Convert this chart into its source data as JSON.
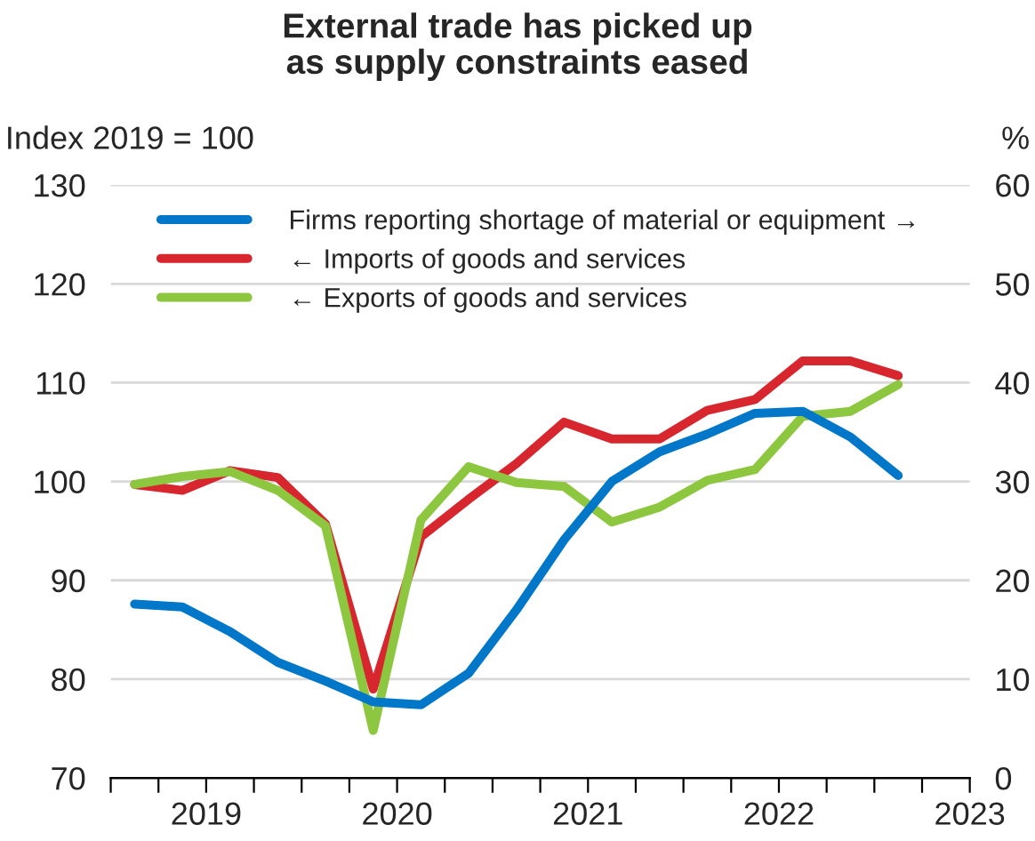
{
  "chart_data": {
    "type": "line",
    "title": "External trade has picked up\nas supply constraints eased",
    "ylabel": "Index 2019 = 100",
    "y2label": "%",
    "x": [
      2018.625,
      2018.875,
      2019.125,
      2019.375,
      2019.625,
      2019.875,
      2020.125,
      2020.375,
      2020.625,
      2020.875,
      2021.125,
      2021.375,
      2021.625,
      2021.875,
      2022.125,
      2022.375,
      2022.625
    ],
    "series": [
      {
        "name": "Firms reporting shortage of material or equipment →",
        "color": "#0077c8",
        "axis": "y2",
        "values": [
          17.6,
          17.3,
          14.8,
          11.7,
          9.8,
          7.7,
          7.4,
          10.6,
          17.0,
          24.1,
          30.0,
          33.0,
          34.8,
          36.9,
          37.1,
          34.5,
          30.6
        ]
      },
      {
        "name": "← Imports of goods and services",
        "color": "#d7262e",
        "values": [
          99.7,
          99.1,
          101.1,
          100.4,
          95.7,
          79.0,
          94.4,
          98.2,
          101.8,
          106.0,
          104.3,
          104.3,
          107.2,
          108.3,
          112.2,
          112.2,
          110.7
        ]
      },
      {
        "name": "← Exports of goods and services",
        "color": "#8dc63f",
        "values": [
          99.7,
          100.5,
          101.0,
          99.1,
          95.5,
          74.8,
          96.1,
          101.5,
          99.9,
          99.5,
          95.9,
          97.4,
          100.1,
          101.2,
          106.6,
          107.1,
          109.8
        ]
      }
    ],
    "xlim": [
      2018.5,
      2023
    ],
    "xticks": [
      {
        "value": 2018.5,
        "label": null
      },
      {
        "value": 2018.75,
        "label": null
      },
      {
        "value": 2019,
        "label": "2019"
      },
      {
        "value": 2019.25,
        "label": null
      },
      {
        "value": 2019.5,
        "label": null
      },
      {
        "value": 2019.75,
        "label": null
      },
      {
        "value": 2020,
        "label": "2020"
      },
      {
        "value": 2020.25,
        "label": null
      },
      {
        "value": 2020.5,
        "label": null
      },
      {
        "value": 2020.75,
        "label": null
      },
      {
        "value": 2021,
        "label": "2021"
      },
      {
        "value": 2021.25,
        "label": null
      },
      {
        "value": 2021.5,
        "label": null
      },
      {
        "value": 2021.75,
        "label": null
      },
      {
        "value": 2022,
        "label": "2022"
      },
      {
        "value": 2022.25,
        "label": null
      },
      {
        "value": 2022.5,
        "label": null
      },
      {
        "value": 2022.75,
        "label": null
      },
      {
        "value": 2023,
        "label": "2023"
      }
    ],
    "ylim": [
      70,
      130
    ],
    "yticks": [
      70,
      80,
      90,
      100,
      110,
      120,
      130
    ],
    "y2lim": [
      0,
      60
    ],
    "y2ticks": [
      0,
      10,
      20,
      30,
      40,
      50,
      60
    ],
    "grid": "y",
    "legend": "top",
    "marker": "none",
    "line_style": "solid"
  }
}
